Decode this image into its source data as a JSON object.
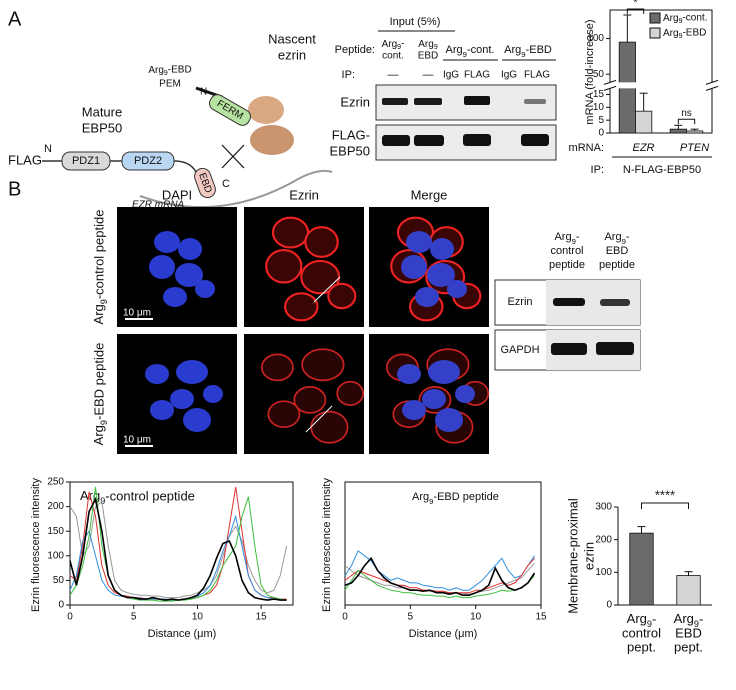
{
  "figure": {
    "panel_labels": [
      "A",
      "B"
    ],
    "diagram": {
      "flag": "FLAG",
      "n_term": "N",
      "mature": [
        "Mature",
        "EBP50"
      ],
      "pdz1": "PDZ1",
      "pdz2": "PDZ2",
      "ebd": "EBD",
      "c_term": "C",
      "mrna": "EZR mRNA",
      "pem": [
        "Arg9-EBD",
        "PEM"
      ],
      "n_term2": "N",
      "ferm": "FERM",
      "nascent": [
        "Nascent",
        "ezrin"
      ]
    },
    "blot_a": {
      "input": "Input (5%)",
      "peptide_label": "Peptide:",
      "input_lanes": [
        [
          "Arg9-",
          "cont."
        ],
        [
          "Arg9",
          "EBD"
        ]
      ],
      "groups": [
        "Arg9-cont.",
        "Arg9-EBD"
      ],
      "ip_label": "IP:",
      "ip_lanes": [
        "—",
        "—",
        "IgG",
        "FLAG",
        "IgG",
        "FLAG"
      ],
      "rows": [
        [
          "Ezrin"
        ],
        [
          "FLAG-",
          "EBP50"
        ]
      ]
    },
    "microscopy": {
      "columns": [
        "DAPI",
        "Ezrin",
        "Merge"
      ],
      "rows": [
        "Arg9-control peptide",
        "Arg9-EBD peptide"
      ],
      "scale_bar": "10 μm"
    },
    "blot_b": {
      "columns": [
        [
          "Arg9-",
          "control",
          "peptide"
        ],
        [
          "Arg9-",
          "EBD",
          "peptide"
        ]
      ],
      "rows": [
        "Ezrin",
        "GAPDH"
      ]
    }
  },
  "chart_data": [
    {
      "type": "bar",
      "ylabel": "mRNA (fold-increase)",
      "categories": [
        "EZR",
        "PTEN"
      ],
      "categories_italic": true,
      "series": [
        {
          "name": "Arg9-cont.",
          "color": "#6b6b6b",
          "values": [
            95,
            1.5
          ],
          "errors": [
            38,
            1.5
          ]
        },
        {
          "name": "Arg9-EBD",
          "color": "#d4d4d4",
          "values": [
            8.5,
            0.8
          ],
          "errors": [
            7,
            0.7
          ]
        }
      ],
      "ylim": [
        0,
        140
      ],
      "ybreak": [
        17,
        40
      ],
      "yticks": [
        0,
        5,
        10,
        15,
        50,
        100
      ],
      "legend": "upper right",
      "annotations": [
        "*",
        "ns"
      ],
      "category_axis_label": "mRNA:",
      "ip_label": "IP:",
      "ip_value": "N-FLAG-EBP50"
    },
    {
      "type": "line",
      "title": "Arg9-control peptide",
      "ylabel": "Ezrin fluorescence intensity",
      "xlabel": "Distance (μm)",
      "x": [
        0,
        0.5,
        1,
        1.5,
        2,
        2.5,
        3,
        3.5,
        4,
        4.5,
        5,
        5.5,
        6,
        6.5,
        7,
        7.5,
        8,
        8.5,
        9,
        9.5,
        10,
        10.5,
        11,
        11.5,
        12,
        12.5,
        13,
        13.5,
        14,
        14.5,
        15,
        15.5,
        16,
        16.5,
        17
      ],
      "xlim": [
        0,
        17.5
      ],
      "xticks": [
        0,
        5,
        10,
        15
      ],
      "ylim": [
        0,
        250
      ],
      "yticks": [
        0,
        50,
        100,
        150,
        200,
        250
      ],
      "series": [
        {
          "color": "#999999",
          "values": [
            200,
            180,
            100,
            120,
            200,
            210,
            120,
            50,
            30,
            25,
            22,
            20,
            20,
            18,
            18,
            15,
            15,
            15,
            18,
            20,
            25,
            30,
            40,
            60,
            100,
            140,
            160,
            130,
            80,
            50,
            30,
            25,
            30,
            60,
            120
          ]
        },
        {
          "color": "#e03030",
          "values": [
            60,
            50,
            120,
            230,
            180,
            80,
            40,
            25,
            20,
            18,
            15,
            15,
            12,
            12,
            12,
            10,
            10,
            10,
            12,
            12,
            15,
            20,
            25,
            40,
            80,
            160,
            240,
            150,
            60,
            30,
            20,
            15,
            15,
            12,
            12
          ]
        },
        {
          "color": "#2f8fe0",
          "values": [
            30,
            60,
            130,
            150,
            100,
            50,
            30,
            20,
            18,
            15,
            15,
            14,
            12,
            12,
            12,
            12,
            10,
            10,
            12,
            14,
            18,
            25,
            40,
            70,
            110,
            140,
            180,
            120,
            60,
            30,
            20,
            15,
            12,
            12,
            10
          ]
        },
        {
          "color": "#3cbf3c",
          "values": [
            20,
            40,
            80,
            140,
            240,
            120,
            60,
            30,
            20,
            15,
            12,
            10,
            10,
            10,
            8,
            8,
            8,
            10,
            10,
            12,
            15,
            20,
            30,
            50,
            80,
            100,
            120,
            180,
            220,
            120,
            40,
            20,
            15,
            12,
            10
          ]
        },
        {
          "color": "#000000",
          "values": [
            90,
            40,
            100,
            190,
            215,
            150,
            60,
            30,
            20,
            15,
            15,
            12,
            12,
            15,
            12,
            10,
            12,
            10,
            12,
            15,
            20,
            35,
            60,
            95,
            125,
            130,
            100,
            50,
            25,
            15,
            12,
            10,
            12,
            10,
            10
          ]
        }
      ]
    },
    {
      "type": "line",
      "title": "Arg9-EBD peptide",
      "ylabel": "Ezrin fluorescence intensity",
      "xlabel": "Distance (μm)",
      "x": [
        0,
        0.5,
        1,
        1.5,
        2,
        2.5,
        3,
        3.5,
        4,
        4.5,
        5,
        5.5,
        6,
        6.5,
        7,
        7.5,
        8,
        8.5,
        9,
        9.5,
        10,
        10.5,
        11,
        11.5,
        12,
        12.5,
        13,
        13.5,
        14,
        14.5
      ],
      "xlim": [
        0,
        15
      ],
      "xticks": [
        0,
        5,
        10,
        15
      ],
      "ylim": [
        0,
        250
      ],
      "series": [
        {
          "color": "#999999",
          "values": [
            80,
            70,
            60,
            55,
            50,
            45,
            40,
            40,
            35,
            35,
            32,
            30,
            30,
            28,
            28,
            26,
            25,
            25,
            24,
            22,
            25,
            28,
            30,
            35,
            40,
            45,
            50,
            55,
            70,
            85
          ]
        },
        {
          "color": "#2f8fe0",
          "values": [
            60,
            80,
            110,
            100,
            90,
            70,
            60,
            50,
            55,
            50,
            45,
            45,
            40,
            38,
            35,
            35,
            30,
            35,
            30,
            30,
            40,
            50,
            65,
            80,
            95,
            70,
            55,
            60,
            80,
            100
          ]
        },
        {
          "color": "#e03030",
          "values": [
            50,
            60,
            70,
            65,
            60,
            55,
            50,
            45,
            40,
            40,
            35,
            35,
            30,
            30,
            28,
            28,
            25,
            25,
            25,
            25,
            30,
            30,
            35,
            40,
            45,
            40,
            45,
            60,
            80,
            95
          ]
        },
        {
          "color": "#3cbf3c",
          "values": [
            30,
            50,
            70,
            60,
            50,
            40,
            35,
            30,
            28,
            25,
            25,
            22,
            20,
            20,
            18,
            18,
            15,
            18,
            15,
            15,
            18,
            20,
            22,
            25,
            30,
            28,
            30,
            35,
            45,
            60
          ]
        },
        {
          "color": "#000000",
          "values": [
            40,
            45,
            60,
            80,
            95,
            70,
            55,
            45,
            40,
            35,
            30,
            30,
            28,
            30,
            25,
            25,
            22,
            25,
            20,
            20,
            25,
            30,
            40,
            75,
            50,
            35,
            30,
            35,
            45,
            65
          ]
        }
      ]
    },
    {
      "type": "bar",
      "ylabel": [
        "Membrane-proximal",
        "ezrin"
      ],
      "categories": [
        [
          "Arg9-",
          "control",
          "pept."
        ],
        [
          "Arg9-",
          "EBD",
          "pept."
        ]
      ],
      "values": [
        220,
        90
      ],
      "errors": [
        20,
        12
      ],
      "colors": [
        "#6b6b6b",
        "#d4d4d4"
      ],
      "ylim": [
        0,
        300
      ],
      "yticks": [
        0,
        100,
        200,
        300
      ],
      "annotations": [
        "****"
      ]
    }
  ]
}
